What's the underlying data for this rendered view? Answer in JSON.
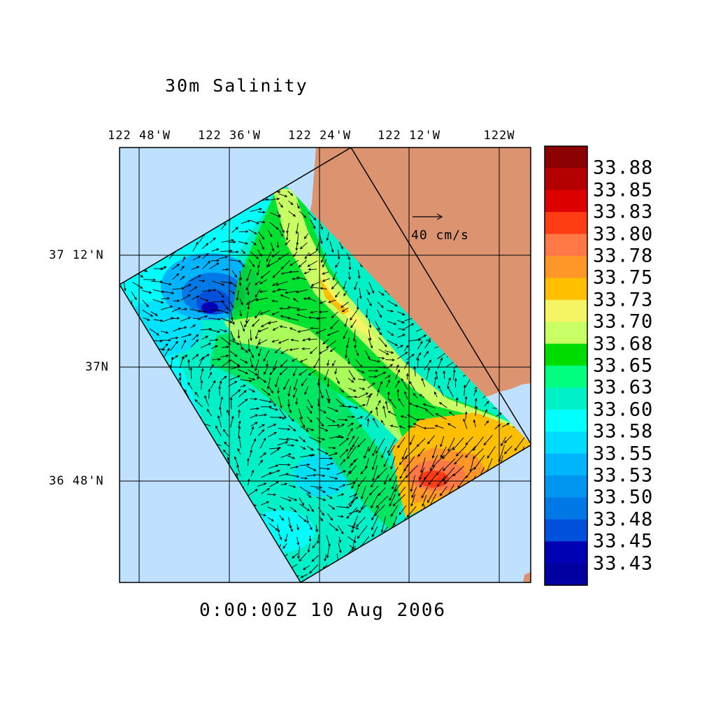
{
  "title": "30m Salinity",
  "timestamp": "0:00:00Z  10 Aug 2006",
  "lon_labels": [
    "122 48'W",
    "122 36'W",
    "122 24'W",
    "122 12'W",
    "122W"
  ],
  "lat_labels": [
    "37 12'N",
    "37N",
    "36 48'N"
  ],
  "vector_scale": {
    "label": "40 cm/s"
  },
  "colorbar": {
    "labels": [
      "33.88",
      "33.85",
      "33.83",
      "33.80",
      "33.78",
      "33.75",
      "33.73",
      "33.70",
      "33.68",
      "33.65",
      "33.63",
      "33.60",
      "33.58",
      "33.55",
      "33.53",
      "33.50",
      "33.48",
      "33.45",
      "33.43"
    ],
    "colors": [
      "#8b0000",
      "#b40000",
      "#dc0000",
      "#ff3c14",
      "#ff7846",
      "#ff9628",
      "#ffbe00",
      "#f5f564",
      "#c8ff64",
      "#00dc00",
      "#00ff80",
      "#00f0c8",
      "#00ffff",
      "#00dcff",
      "#00b4ff",
      "#0096f0",
      "#0078e6",
      "#0050dc",
      "#0000b4"
    ]
  },
  "colors": {
    "ocean_background": "#c0e0ff",
    "land": "#dc9470",
    "grid": "#000000"
  }
}
